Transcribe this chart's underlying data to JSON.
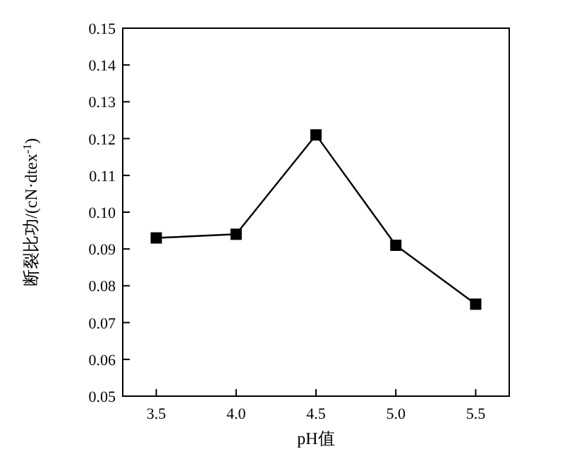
{
  "chart_data": {
    "type": "line",
    "xlabel": "pH值",
    "ylabel": "断裂比功/(cN·dtex$^{-1}$)",
    "x": [
      3.5,
      4.0,
      4.5,
      5.0,
      5.5
    ],
    "series": [
      {
        "color": "#000000",
        "values": [
          0.093,
          0.094,
          0.121,
          0.091,
          0.075
        ]
      }
    ],
    "marker": "square",
    "xlim": [
      3.29,
      5.71
    ],
    "ylim": [
      0.05,
      0.15
    ],
    "xticks": [
      3.5,
      {
        "value": 4,
        "label": "4.0"
      },
      4.5,
      {
        "value": 5,
        "label": "5.0"
      },
      5.5
    ],
    "yticks": [
      0.05,
      0.06,
      0.07,
      0.08,
      0.09,
      {
        "value": 0.1,
        "label": "0.10"
      },
      0.11,
      0.12,
      0.13,
      0.14,
      0.15
    ]
  }
}
